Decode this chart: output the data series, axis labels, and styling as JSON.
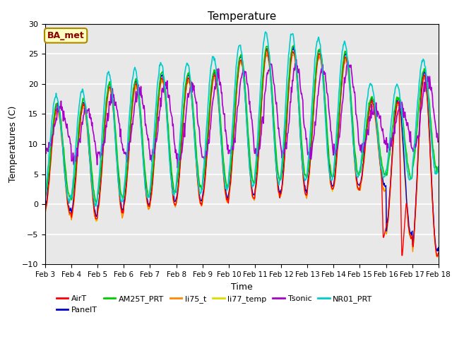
{
  "title": "Temperature",
  "xlabel": "Time",
  "ylabel": "Temperatures (C)",
  "ylim": [
    -10,
    30
  ],
  "xlim": [
    3,
    18
  ],
  "annotation": "BA_met",
  "annotation_color": "#8B0000",
  "annotation_bg": "#FFFFC0",
  "annotation_edge": "#AA8800",
  "bg_color": "#E8E8E8",
  "series_colors": {
    "AirT": "#FF0000",
    "PanelT": "#0000CC",
    "AM25T_PRT": "#00CC00",
    "li75_t": "#FF8800",
    "li77_temp": "#DDDD00",
    "Tsonic": "#AA00CC",
    "NR01_PRT": "#00CCCC"
  },
  "legend_order": [
    "AirT",
    "PanelT",
    "AM25T_PRT",
    "li75_t",
    "li77_temp",
    "Tsonic",
    "NR01_PRT"
  ],
  "day_mins_air": [
    -1.5,
    -2.5,
    -1.5,
    -0.5,
    0.0,
    0.0,
    0.5,
    1.0,
    1.5,
    1.5,
    2.5,
    2.5,
    2.5,
    -5.5,
    -8.5
  ],
  "day_maxs_air": [
    16.0,
    16.5,
    19.5,
    20.0,
    21.0,
    21.0,
    21.5,
    24.0,
    25.5,
    25.5,
    25.0,
    24.5,
    17.0,
    17.0,
    21.5
  ],
  "day_mins_nro": [
    0.5,
    0.0,
    0.5,
    1.0,
    1.5,
    2.0,
    2.5,
    3.0,
    3.5,
    4.0,
    4.0,
    4.5,
    4.5,
    4.0,
    5.0
  ],
  "day_maxs_nro": [
    18.0,
    19.0,
    22.0,
    22.5,
    23.5,
    23.5,
    24.5,
    26.5,
    28.5,
    28.5,
    27.5,
    27.0,
    20.0,
    20.0,
    24.0
  ],
  "day_mins_tsonic": [
    9.0,
    7.0,
    8.0,
    8.0,
    8.0,
    7.0,
    8.0,
    8.5,
    8.5,
    8.5,
    8.0,
    9.0,
    9.0,
    9.0,
    9.0
  ],
  "day_maxs_tsonic": [
    16.0,
    16.0,
    18.0,
    19.0,
    20.0,
    20.0,
    21.0,
    22.5,
    23.0,
    23.0,
    22.5,
    23.5,
    16.0,
    16.5,
    21.0
  ]
}
